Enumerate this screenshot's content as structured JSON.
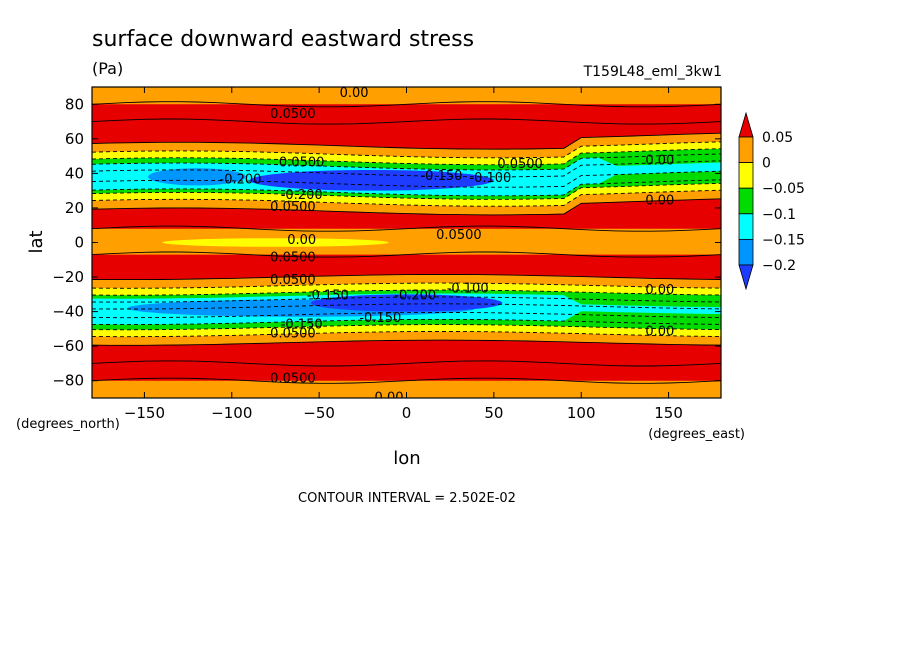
{
  "chart_data": {
    "type": "heatmap",
    "subtype": "filled-contour",
    "title": "surface downward eastward stress",
    "units": "(Pa)",
    "run_label": "T159L48_eml_3kw1",
    "xlabel": "lon",
    "ylabel": "lat",
    "x_units": "(degrees_east)",
    "y_units": "(degrees_north)",
    "xlim": [
      -180,
      180
    ],
    "ylim": [
      -90,
      90
    ],
    "x_ticks": [
      -150,
      -100,
      -50,
      0,
      50,
      100,
      150
    ],
    "x_tick_labels": [
      "−150",
      "−100",
      "−50",
      "0",
      "50",
      "100",
      "150"
    ],
    "y_ticks": [
      -80,
      -60,
      -40,
      -20,
      0,
      20,
      40,
      60,
      80
    ],
    "y_tick_labels": [
      "−80",
      "−60",
      "−40",
      "−20",
      "0",
      "20",
      "40",
      "60",
      "80"
    ],
    "contour_interval": "CONTOUR INTERVAL = 2.502E-02",
    "colorbar": {
      "levels": [
        0.05,
        0,
        -0.05,
        -0.1,
        -0.15,
        -0.2
      ],
      "labels": [
        "0.05",
        "0",
        "−0.05",
        "−0.1",
        "−0.15",
        "−0.2"
      ],
      "colors": [
        "#e60000",
        "#ff9f00",
        "#ffff00",
        "#00dc00",
        "#00ffff",
        "#0096ff",
        "#1e3cff"
      ],
      "extend": "both"
    },
    "contour_labels": [
      {
        "text": "0.00",
        "lon": -30,
        "lat": 87
      },
      {
        "text": "0.0500",
        "lon": -65,
        "lat": 75
      },
      {
        "text": "0.0500",
        "lon": -60,
        "lat": 47
      },
      {
        "text": "0.0500",
        "lon": 65,
        "lat": 46
      },
      {
        "text": "0.00",
        "lon": 145,
        "lat": 48
      },
      {
        "text": "-0.200",
        "lon": -95,
        "lat": 37
      },
      {
        "text": "-0.150",
        "lon": 20,
        "lat": 39
      },
      {
        "text": "-0.100",
        "lon": 48,
        "lat": 38
      },
      {
        "text": "-0.200",
        "lon": -60,
        "lat": 28
      },
      {
        "text": "0.0500",
        "lon": -65,
        "lat": 21
      },
      {
        "text": "0.00",
        "lon": 145,
        "lat": 25
      },
      {
        "text": "0.00",
        "lon": -60,
        "lat": 2
      },
      {
        "text": "0.0500",
        "lon": 30,
        "lat": 5
      },
      {
        "text": "0.0500",
        "lon": -65,
        "lat": -8
      },
      {
        "text": "0.0500",
        "lon": -65,
        "lat": -21
      },
      {
        "text": "-0.150",
        "lon": -45,
        "lat": -30
      },
      {
        "text": "-0.200",
        "lon": 5,
        "lat": -30
      },
      {
        "text": "-0.100",
        "lon": 35,
        "lat": -26
      },
      {
        "text": "0.00",
        "lon": 145,
        "lat": -27
      },
      {
        "text": "-0.150",
        "lon": -15,
        "lat": -43
      },
      {
        "text": "-0.150",
        "lon": -60,
        "lat": -47
      },
      {
        "text": "0.0500",
        "lon": -65,
        "lat": -52
      },
      {
        "text": "0.00",
        "lon": 145,
        "lat": -51
      },
      {
        "text": "0.0500",
        "lon": -65,
        "lat": -78
      },
      {
        "text": "0.00",
        "lon": -10,
        "lat": -89
      }
    ],
    "grid": false,
    "legend": "colorbar right"
  }
}
